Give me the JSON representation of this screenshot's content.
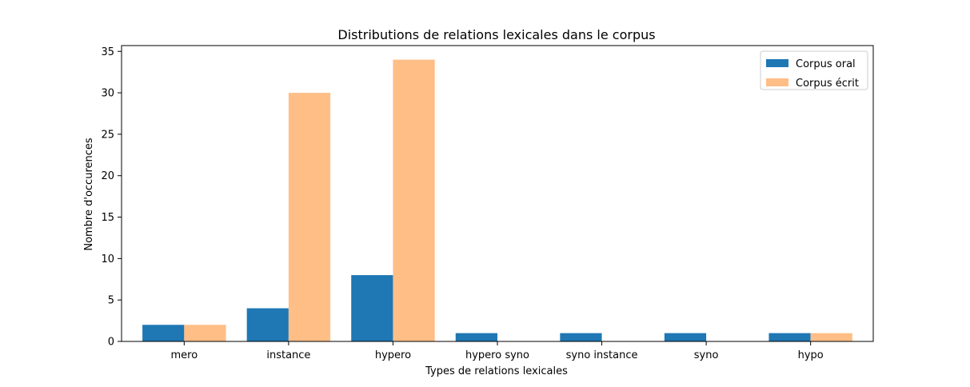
{
  "chart_data": {
    "type": "bar",
    "title": "Distributions de relations lexicales dans le corpus",
    "xlabel": "Types de relations lexicales",
    "ylabel": "Nombre d'occurences",
    "categories": [
      "mero",
      "instance",
      "hypero",
      "hypero syno",
      "syno instance",
      "syno",
      "hypo"
    ],
    "series": [
      {
        "name": "Corpus oral",
        "values": [
          2,
          4,
          8,
          1,
          1,
          1,
          1
        ],
        "color": "#1f77b4"
      },
      {
        "name": "Corpus écrit",
        "values": [
          2,
          30,
          34,
          0,
          0,
          0,
          1
        ],
        "color": "#ffbe86"
      }
    ],
    "ylim": [
      0,
      35.7
    ],
    "yticks": [
      0,
      5,
      10,
      15,
      20,
      25,
      30,
      35
    ],
    "grid": false,
    "legend_position": "top-right"
  }
}
